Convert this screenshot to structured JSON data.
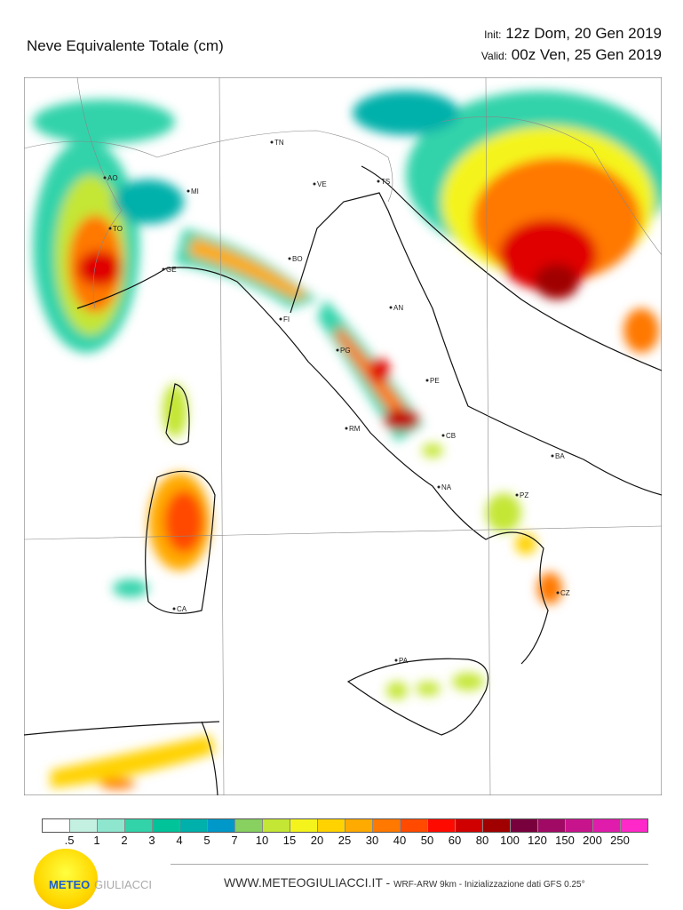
{
  "header": {
    "title": "Neve Equivalente Totale   (cm)",
    "init_label": "Init:",
    "init_value": "12z Dom, 20 Gen 2019",
    "valid_label": "Valid:",
    "valid_value": "00z Ven, 25 Gen 2019"
  },
  "map": {
    "cities": [
      {
        "code": "TN"
      },
      {
        "code": "AO"
      },
      {
        "code": "MI"
      },
      {
        "code": "VE"
      },
      {
        "code": "TS"
      },
      {
        "code": "TO"
      },
      {
        "code": "BO"
      },
      {
        "code": "GE"
      },
      {
        "code": "AN"
      },
      {
        "code": "FI"
      },
      {
        "code": "PG"
      },
      {
        "code": "PE"
      },
      {
        "code": "RM"
      },
      {
        "code": "CB"
      },
      {
        "code": "BA"
      },
      {
        "code": "NA"
      },
      {
        "code": "PZ"
      },
      {
        "code": "CZ"
      },
      {
        "code": "PA"
      },
      {
        "code": "CA"
      }
    ]
  },
  "legend": {
    "unit": "cm",
    "colors": [
      "#ffffff",
      "#c4f0e2",
      "#8ee6cf",
      "#33d3aa",
      "#00c39a",
      "#00b0aa",
      "#0098c8",
      "#88d060",
      "#c4e634",
      "#f4f41c",
      "#ffd200",
      "#ffaa00",
      "#ff7800",
      "#ff4a00",
      "#ff0a00",
      "#d00000",
      "#a00000",
      "#78003c",
      "#a00a64",
      "#c8148c",
      "#e01cac",
      "#ff28c8"
    ],
    "labels": [
      ".5",
      "1",
      "2",
      "3",
      "4",
      "5",
      "7",
      "10",
      "15",
      "20",
      "25",
      "30",
      "40",
      "50",
      "60",
      "80",
      "100",
      "120",
      "150",
      "200",
      "250"
    ]
  },
  "footer": {
    "site": "WWW.METEOGIULIACCI.IT - ",
    "model": "WRF-ARW 9km - Inizializzazione dati GFS 0.25°",
    "logo_a": "METEO",
    "logo_b": "GIULIACCI"
  }
}
